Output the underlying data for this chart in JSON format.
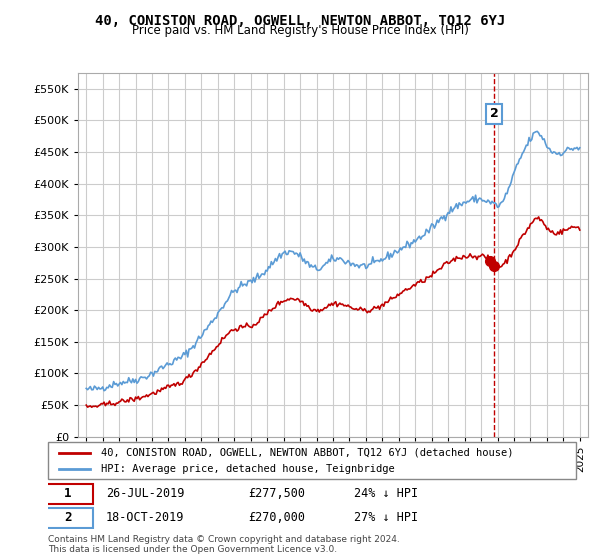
{
  "title": "40, CONISTON ROAD, OGWELL, NEWTON ABBOT, TQ12 6YJ",
  "subtitle": "Price paid vs. HM Land Registry's House Price Index (HPI)",
  "footer": "Contains HM Land Registry data © Crown copyright and database right 2024.\nThis data is licensed under the Open Government Licence v3.0.",
  "legend_line1": "40, CONISTON ROAD, OGWELL, NEWTON ABBOT, TQ12 6YJ (detached house)",
  "legend_line2": "HPI: Average price, detached house, Teignbridge",
  "sale1_label": "1",
  "sale1_date": "26-JUL-2019",
  "sale1_price": "£277,500",
  "sale1_hpi": "24% ↓ HPI",
  "sale2_label": "2",
  "sale2_date": "18-OCT-2019",
  "sale2_price": "£270,000",
  "sale2_hpi": "27% ↓ HPI",
  "hpi_color": "#5b9bd5",
  "price_color": "#c00000",
  "dashed_color": "#c00000",
  "marker_color": "#c00000",
  "sale1_marker_color": "#c00000",
  "sale2_marker_color": "#c00000",
  "vline_color": "#c00000",
  "yticks": [
    0,
    50000,
    100000,
    150000,
    200000,
    250000,
    300000,
    350000,
    400000,
    450000,
    500000,
    550000
  ],
  "ylim": [
    0,
    575000
  ],
  "ylabel_format": "£{0}K",
  "background_color": "#ffffff",
  "grid_color": "#cccccc",
  "sale1_box_color": "#c00000",
  "sale2_box_color": "#5b9bd5"
}
